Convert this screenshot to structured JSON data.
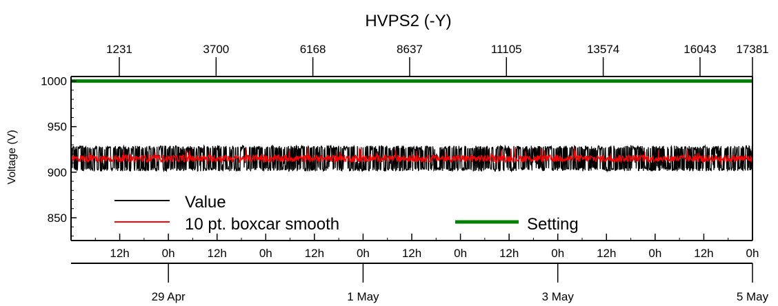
{
  "chart_data": {
    "type": "line",
    "title": "HVPS2 (-Y)",
    "ylabel": "Voltage (V)",
    "ylim": [
      825,
      1005
    ],
    "y_ticks": [
      850,
      900,
      950,
      1000
    ],
    "top_axis": {
      "tick_labels": [
        "1231",
        "3700",
        "6168",
        "8637",
        "11105",
        "13574",
        "16043",
        "17381"
      ],
      "tick_values": [
        1231,
        3700,
        6168,
        8637,
        11105,
        13574,
        16043,
        17381
      ]
    },
    "x_hour_labels": [
      "12h",
      "0h",
      "12h",
      "0h",
      "12h",
      "0h",
      "12h",
      "0h",
      "12h",
      "0h",
      "12h",
      "0h",
      "12h",
      "0h"
    ],
    "x_date_labels": [
      "29 Apr",
      "1 May",
      "3 May",
      "5 May"
    ],
    "x_range_days": [
      0,
      7.0
    ],
    "x_hour_ticks_days": [
      0.5,
      1.0,
      1.5,
      2.0,
      2.5,
      3.0,
      3.5,
      4.0,
      4.5,
      5.0,
      5.5,
      6.0,
      6.5,
      7.0
    ],
    "x_date_ticks_days": [
      1.0,
      3.0,
      5.0,
      7.0
    ],
    "series": [
      {
        "name": "Value",
        "color": "#000000",
        "mean": 915,
        "min": 901,
        "max": 929
      },
      {
        "name": "10 pt. boxcar smooth",
        "color": "#ff0000",
        "mean": 915,
        "min": 905,
        "max": 927
      },
      {
        "name": "Setting",
        "color": "#008000",
        "values": [
          1000,
          1000
        ]
      }
    ],
    "legend_placement": "bottom",
    "grid": false
  }
}
